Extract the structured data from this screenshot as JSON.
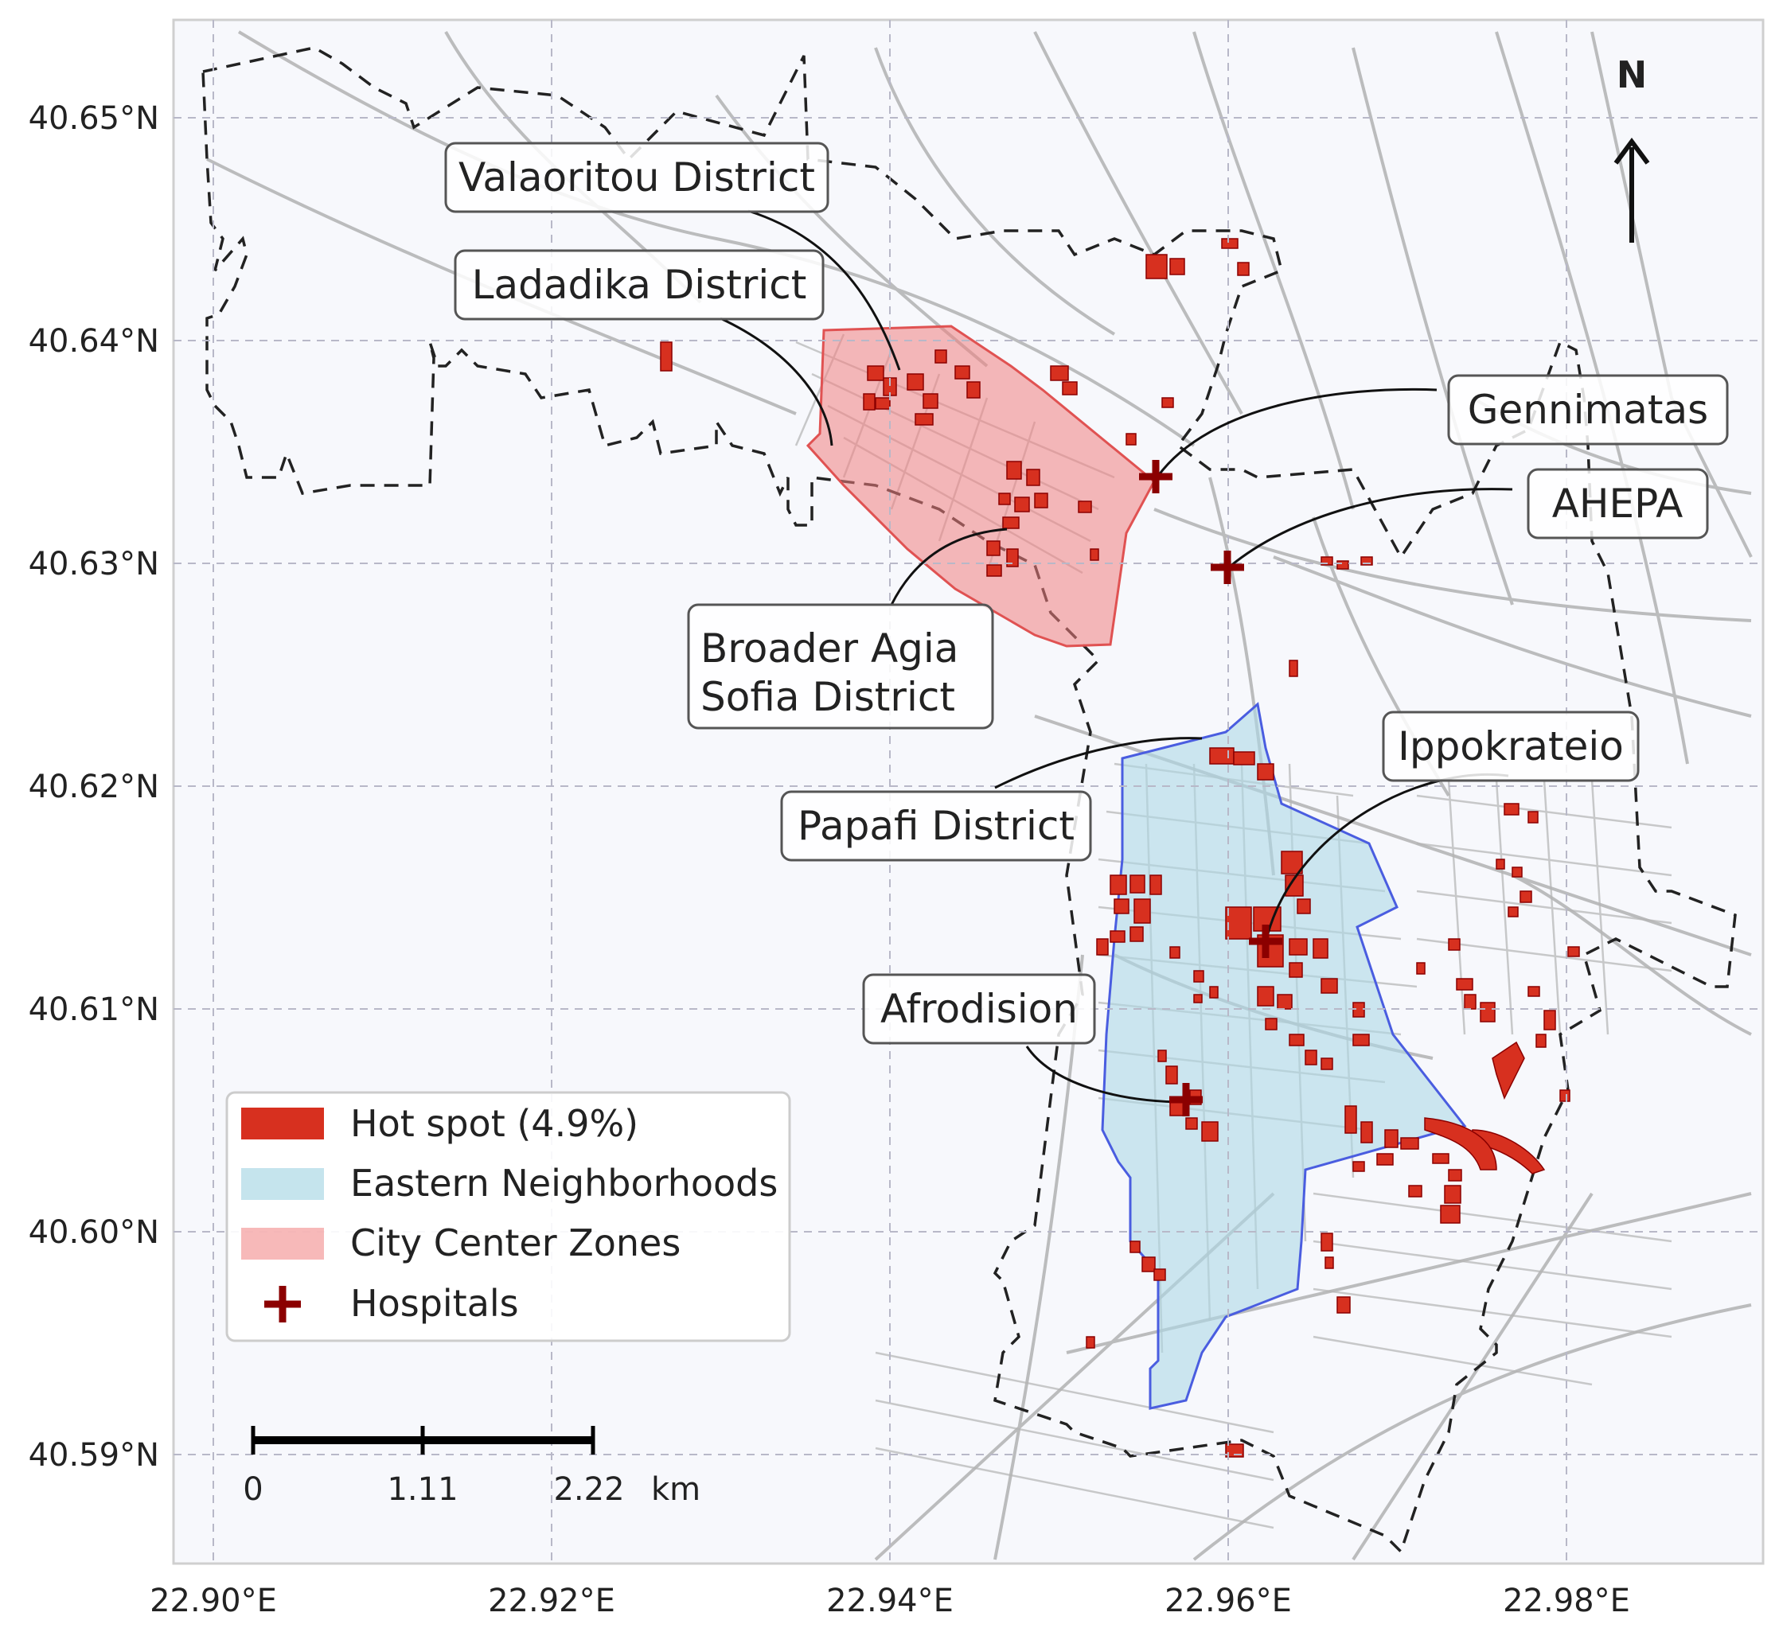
{
  "axes": {
    "lat_ticks": [
      "40.65°N",
      "40.64°N",
      "40.63°N",
      "40.62°N",
      "40.61°N",
      "40.60°N",
      "40.59°N"
    ],
    "lon_ticks": [
      "22.90°E",
      "22.92°E",
      "22.94°E",
      "22.96°E",
      "22.98°E"
    ]
  },
  "north_arrow": {
    "label": "N"
  },
  "callouts": {
    "valaoritou": "Valaoritou District",
    "ladadika": "Ladadika District",
    "agia_sofia_line1": "Broader Agia",
    "agia_sofia_line2": "Sofia District",
    "papafi": "Papafi District",
    "afrodision": "Afrodision",
    "gennimatas": "Gennimatas",
    "ahepa": "AHEPA",
    "ippokrateio": "Ippokrateio"
  },
  "legend": {
    "hot_spot": "Hot spot (4.9%)",
    "eastern": "Eastern Neighborhoods",
    "city_center": "City Center Zones",
    "hospitals": "Hospitals"
  },
  "scale_bar": {
    "zero": "0",
    "mid": "1.11",
    "end": "2.22",
    "unit": "km"
  },
  "colors": {
    "hot_spot": "#d7301f",
    "eastern_fill": "#add8e6",
    "city_center_fill": "#f08080",
    "hospital": "#8b0000",
    "streets": "#9a9a9a",
    "background": "#f7f8fc"
  }
}
